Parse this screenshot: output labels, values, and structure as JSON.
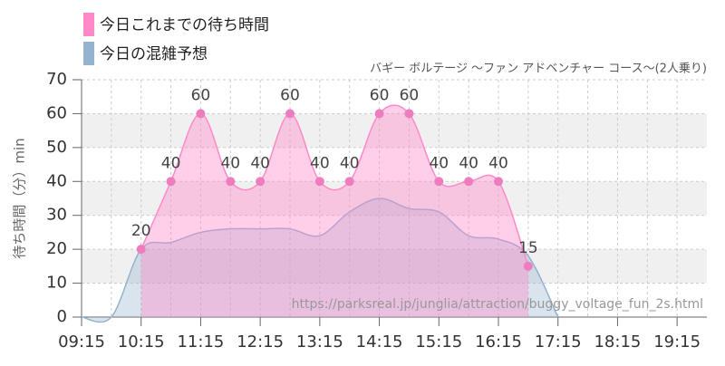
{
  "chart_data": {
    "type": "area",
    "subtitle": "バギー ボルテージ 〜ファン アドベンチャー コース〜(2人乗り)",
    "y_label": "待ち時間（分）min",
    "annotation": "https://parksreal.jp/junglia/attraction/buggy_voltage_fun_2s.html",
    "xlim": [
      "09:15",
      "19:45"
    ],
    "xticks": [
      "09:15",
      "10:15",
      "11:15",
      "12:15",
      "13:15",
      "14:15",
      "15:15",
      "16:15",
      "17:15",
      "18:15",
      "19:15"
    ],
    "ylim": [
      0,
      70
    ],
    "yticks": [
      0,
      10,
      20,
      30,
      40,
      50,
      60,
      70
    ],
    "grid": true,
    "series": [
      {
        "name": "今日の混雑予想",
        "color": "#93b3cf",
        "x": [
          "09:15",
          "09:45",
          "10:15",
          "10:45",
          "11:15",
          "11:45",
          "12:15",
          "12:45",
          "13:15",
          "13:45",
          "14:15",
          "14:45",
          "15:15",
          "15:45",
          "16:15",
          "16:45",
          "17:15"
        ],
        "values": [
          0,
          0,
          20,
          22,
          25,
          26,
          26,
          26,
          24,
          31,
          35,
          32,
          31,
          24,
          23,
          18,
          0
        ]
      },
      {
        "name": "今日これまでの待ち時間",
        "color": "#ff88c8",
        "x": [
          "10:15",
          "10:45",
          "11:15",
          "11:45",
          "12:15",
          "12:45",
          "13:15",
          "13:45",
          "14:15",
          "14:45",
          "15:15",
          "15:45",
          "16:15",
          "16:45"
        ],
        "values": [
          20,
          40,
          60,
          40,
          40,
          60,
          40,
          40,
          60,
          60,
          40,
          40,
          40,
          15
        ]
      }
    ],
    "legend_order": [
      1,
      0
    ]
  }
}
